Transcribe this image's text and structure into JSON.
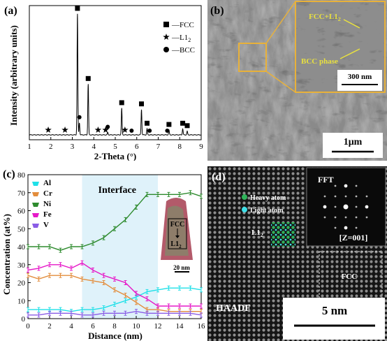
{
  "panels": {
    "a": {
      "label": "(a)"
    },
    "b": {
      "label": "(b)",
      "inset_labels": {
        "phase1": "FCC+L1",
        "phase1_sub": "2",
        "phase2": "BCC phase"
      },
      "inset_scale": "300 nm",
      "scale": "1μm"
    },
    "c": {
      "label": "(c)",
      "region_label": "Interface",
      "inset": {
        "top": "FCC",
        "bottom": "L1",
        "bottom_sub": "2",
        "scale": "20 nm"
      }
    },
    "d": {
      "label": "(d)",
      "fft_label": "FFT",
      "zone_axis": "[Z=001]",
      "legend": [
        "Heavy atom",
        "Light atom"
      ],
      "l12_label": "L1",
      "l12_sub": "2",
      "fcc_label": "FCC",
      "haadf": "HAADF",
      "scale": "5 nm"
    }
  },
  "chart_data": [
    {
      "type": "bar",
      "title": "",
      "xlabel": "2-Theta (°)",
      "ylabel": "Intensity (arbitrary units)",
      "xlim": [
        1,
        9
      ],
      "xticks": [
        1,
        2,
        3,
        4,
        5,
        6,
        7,
        8,
        9
      ],
      "legend": [
        {
          "marker": "square",
          "label": "FCC"
        },
        {
          "marker": "star",
          "label": "L1",
          "sub": "2"
        },
        {
          "marker": "circle",
          "label": "BCC"
        }
      ],
      "peaks": [
        {
          "x": 3.24,
          "h": 1.0
        },
        {
          "x": 3.74,
          "h": 0.42
        },
        {
          "x": 5.3,
          "h": 0.22
        },
        {
          "x": 6.22,
          "h": 0.21
        },
        {
          "x": 6.48,
          "h": 0.05
        },
        {
          "x": 7.5,
          "h": 0.04
        },
        {
          "x": 8.14,
          "h": 0.05
        },
        {
          "x": 8.35,
          "h": 0.03
        },
        {
          "x": 3.33,
          "h": 0.1
        },
        {
          "x": 4.65,
          "h": 0.02
        }
      ],
      "markers": [
        {
          "x": 3.24,
          "m": "square"
        },
        {
          "x": 3.74,
          "m": "square"
        },
        {
          "x": 5.3,
          "m": "square"
        },
        {
          "x": 6.22,
          "m": "square"
        },
        {
          "x": 6.48,
          "m": "square"
        },
        {
          "x": 7.5,
          "m": "square"
        },
        {
          "x": 8.14,
          "m": "square"
        },
        {
          "x": 8.35,
          "m": "square"
        },
        {
          "x": 1.88,
          "m": "star"
        },
        {
          "x": 2.66,
          "m": "star"
        },
        {
          "x": 4.2,
          "m": "star"
        },
        {
          "x": 4.55,
          "m": "star"
        },
        {
          "x": 5.45,
          "m": "star"
        },
        {
          "x": 3.33,
          "m": "circle"
        },
        {
          "x": 4.65,
          "m": "circle"
        },
        {
          "x": 5.76,
          "m": "circle"
        },
        {
          "x": 6.6,
          "m": "circle"
        },
        {
          "x": 7.42,
          "m": "circle"
        }
      ]
    },
    {
      "type": "line",
      "title": "",
      "xlabel": "Distance (nm)",
      "ylabel": "Concentration (at%)",
      "xlim": [
        0,
        16
      ],
      "ylim": [
        0,
        80
      ],
      "xticks": [
        0,
        2,
        4,
        6,
        8,
        10,
        12,
        14,
        16
      ],
      "yticks": [
        0,
        10,
        20,
        30,
        40,
        50,
        60,
        70,
        80
      ],
      "x": [
        0,
        1,
        2,
        3,
        4,
        5,
        6,
        7,
        8,
        9,
        10,
        11,
        12,
        13,
        14,
        15,
        16
      ],
      "interface_region": [
        5,
        12
      ],
      "series": [
        {
          "name": "Al",
          "color": "#1fe0e8",
          "values": [
            5,
            5,
            5,
            5,
            4,
            5,
            5,
            6,
            8,
            10,
            12,
            15,
            16,
            17,
            17,
            17,
            16
          ]
        },
        {
          "name": "Cr",
          "color": "#e38d3c",
          "values": [
            24,
            22,
            24,
            24,
            24,
            22,
            21,
            20,
            16,
            13,
            9,
            5,
            5,
            4,
            4,
            4,
            4
          ]
        },
        {
          "name": "Ni",
          "color": "#2e8b2e",
          "values": [
            40,
            40,
            40,
            38,
            40,
            40,
            42,
            45,
            50,
            55,
            62,
            69,
            69,
            69,
            69,
            70,
            68
          ]
        },
        {
          "name": "Fe",
          "color": "#e619c8",
          "values": [
            27,
            28,
            30,
            30,
            28,
            31,
            27,
            24,
            22,
            20,
            14,
            11,
            7,
            7,
            7,
            7,
            7
          ]
        },
        {
          "name": "V",
          "color": "#8a5ce6",
          "values": [
            2,
            2,
            3,
            3,
            3,
            2,
            2,
            3,
            3,
            3,
            4,
            3,
            3,
            3,
            3,
            3,
            2
          ]
        }
      ]
    }
  ]
}
